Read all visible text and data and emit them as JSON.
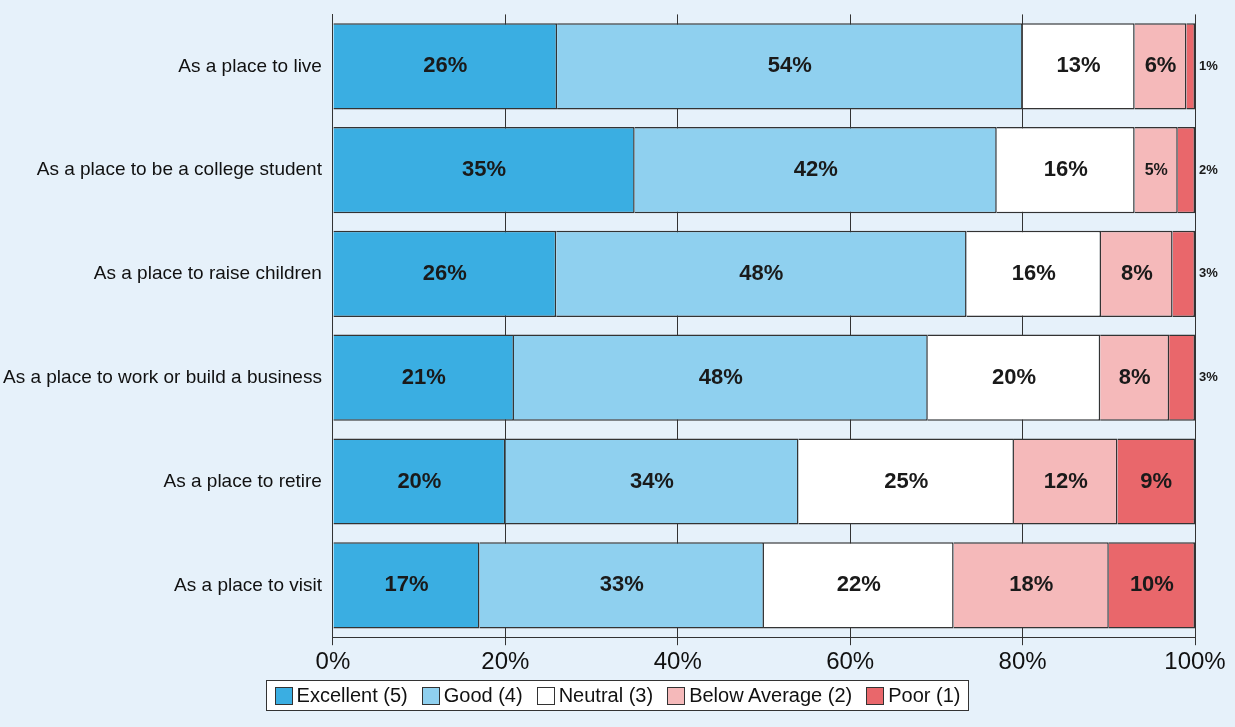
{
  "chart_data": {
    "type": "bar",
    "orientation": "horizontal",
    "stacked": true,
    "grid": "x",
    "legend": "bottom",
    "categories": [
      "As a place to live",
      "As a place to be a college student",
      "As a place to raise children",
      "As a place to work or build a business",
      "As a place to retire",
      "As a place to visit"
    ],
    "xlim": [
      0,
      100
    ],
    "xticks": [
      {
        "value": 0,
        "label": "0%"
      },
      {
        "value": 20,
        "label": "20%"
      },
      {
        "value": 40,
        "label": "40%"
      },
      {
        "value": 60,
        "label": "60%"
      },
      {
        "value": 80,
        "label": "80%"
      },
      {
        "value": 100,
        "label": "100%"
      }
    ],
    "series": [
      {
        "name": "Excellent (5)",
        "color": "#3aaee2",
        "values": [
          26,
          35,
          25.9,
          21,
          20,
          17
        ],
        "value_labels": [
          "26%",
          "35%",
          "26%",
          "21%",
          "20%",
          "17%"
        ]
      },
      {
        "name": "Good (4)",
        "color": "#8fd0ef",
        "values": [
          54,
          42,
          47.6,
          48,
          34,
          33
        ],
        "value_labels": [
          "54%",
          "42%",
          "48%",
          "48%",
          "34%",
          "33%"
        ]
      },
      {
        "name": "Neutral (3)",
        "color": "#ffffff",
        "values": [
          13,
          16,
          15.6,
          20,
          25,
          22
        ],
        "value_labels": [
          "13%",
          "16%",
          "16%",
          "20%",
          "25%",
          "22%"
        ]
      },
      {
        "name": "Below Average (2)",
        "color": "#f5b9ba",
        "values": [
          6,
          5,
          8.3,
          8,
          12,
          18
        ],
        "value_labels": [
          "6%",
          "5%",
          "8%",
          "8%",
          "12%",
          "18%"
        ]
      },
      {
        "name": "Poor (1)",
        "color": "#e9676b",
        "values": [
          1,
          2,
          2.6,
          3,
          9,
          10
        ],
        "value_labels": [
          "1%",
          "2%",
          "3%",
          "3%",
          "9%",
          "10%"
        ]
      }
    ]
  }
}
